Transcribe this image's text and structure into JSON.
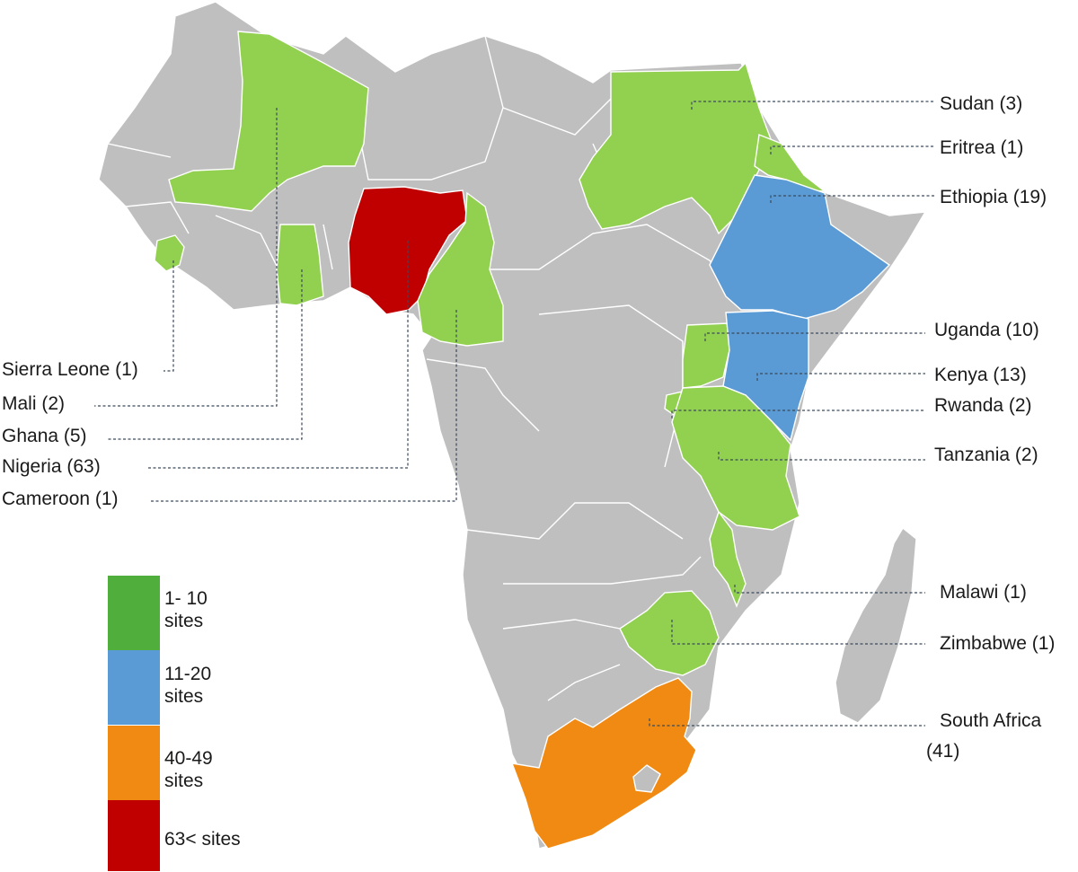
{
  "colors": {
    "land": "#bfbfbf",
    "green": "#92d050",
    "green_legend": "#4fae3c",
    "blue": "#5b9bd5",
    "orange": "#f08a12",
    "red": "#c00000"
  },
  "countries": {
    "sudan": {
      "label": "Sudan (3)",
      "sites": 3,
      "band": "1- 10"
    },
    "eritrea": {
      "label": "Eritrea (1)",
      "sites": 1,
      "band": "1- 10"
    },
    "ethiopia": {
      "label": "Ethiopia (19)",
      "sites": 19,
      "band": "11-20"
    },
    "uganda": {
      "label": "Uganda (10)",
      "sites": 10,
      "band": "1- 10"
    },
    "kenya": {
      "label": "Kenya (13)",
      "sites": 13,
      "band": "11-20"
    },
    "rwanda": {
      "label": "Rwanda (2)",
      "sites": 2,
      "band": "1- 10"
    },
    "tanzania": {
      "label": "Tanzania (2)",
      "sites": 2,
      "band": "1- 10"
    },
    "malawi": {
      "label": "Malawi (1)",
      "sites": 1,
      "band": "1- 10"
    },
    "zimbabwe": {
      "label": "Zimbabwe (1)",
      "sites": 1,
      "band": "1- 10"
    },
    "south_africa": {
      "label_line1": "South Africa",
      "label_line2": "(41)",
      "sites": 41,
      "band": "40-49"
    },
    "sierra_leone": {
      "label": "Sierra Leone (1)",
      "sites": 1,
      "band": "1- 10"
    },
    "mali": {
      "label": "Mali (2)",
      "sites": 2,
      "band": "1- 10"
    },
    "ghana": {
      "label": "Ghana (5)",
      "sites": 5,
      "band": "1- 10"
    },
    "nigeria": {
      "label": "Nigeria (63)",
      "sites": 63,
      "band": "63<"
    },
    "cameroon": {
      "label": "Cameroon (1)",
      "sites": 1,
      "band": "1- 10"
    }
  },
  "legend": [
    {
      "line1": "1- 10",
      "line2": "sites"
    },
    {
      "line1": "11-20",
      "line2": "sites"
    },
    {
      "line1": "40-49",
      "line2": "sites"
    },
    {
      "line1": "63< sites",
      "line2": ""
    }
  ]
}
